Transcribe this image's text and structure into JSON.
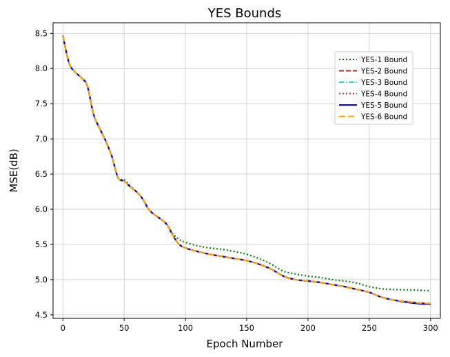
{
  "chart_data": {
    "type": "line",
    "title": "YES Bounds",
    "xlabel": "Epoch Number",
    "ylabel": "MSE(dB)",
    "xlim": [
      -8,
      308
    ],
    "ylim": [
      4.45,
      8.65
    ],
    "xticks": [
      0,
      50,
      100,
      150,
      200,
      250,
      300
    ],
    "yticks": [
      4.5,
      5.0,
      5.5,
      6.0,
      6.5,
      7.0,
      7.5,
      8.0,
      8.5
    ],
    "grid": true,
    "legend_position": "upper-right",
    "x": [
      0,
      5,
      10,
      15,
      20,
      25,
      30,
      35,
      40,
      45,
      50,
      55,
      60,
      65,
      70,
      75,
      80,
      85,
      90,
      95,
      100,
      110,
      120,
      130,
      140,
      150,
      160,
      170,
      180,
      190,
      200,
      210,
      220,
      230,
      240,
      250,
      260,
      270,
      280,
      290,
      300
    ],
    "series": [
      {
        "name": "YES-1 Bound",
        "color": "#008000",
        "dash": "dotted",
        "values": [
          8.47,
          8.08,
          7.95,
          7.87,
          7.75,
          7.35,
          7.15,
          6.97,
          6.75,
          6.45,
          6.42,
          6.33,
          6.25,
          6.15,
          6.0,
          5.92,
          5.86,
          5.78,
          5.65,
          5.57,
          5.53,
          5.48,
          5.45,
          5.43,
          5.4,
          5.36,
          5.3,
          5.22,
          5.12,
          5.08,
          5.05,
          5.03,
          5.0,
          4.98,
          4.95,
          4.9,
          4.87,
          4.86,
          4.855,
          4.85,
          4.84
        ]
      },
      {
        "name": "YES-2 Bound",
        "color": "#b22222",
        "dash": "dashed",
        "values": [
          8.47,
          8.08,
          7.95,
          7.87,
          7.75,
          7.35,
          7.15,
          6.97,
          6.75,
          6.45,
          6.4,
          6.32,
          6.25,
          6.15,
          6.0,
          5.92,
          5.86,
          5.78,
          5.62,
          5.5,
          5.45,
          5.4,
          5.36,
          5.33,
          5.3,
          5.27,
          5.22,
          5.15,
          5.05,
          5.0,
          4.98,
          4.96,
          4.93,
          4.9,
          4.86,
          4.82,
          4.75,
          4.71,
          4.69,
          4.67,
          4.66
        ]
      },
      {
        "name": "YES-3 Bound",
        "color": "#00e5ee",
        "dash": "dashdot",
        "values": [
          8.47,
          8.08,
          7.95,
          7.87,
          7.75,
          7.35,
          7.15,
          6.97,
          6.75,
          6.45,
          6.4,
          6.32,
          6.25,
          6.15,
          6.0,
          5.92,
          5.86,
          5.78,
          5.62,
          5.5,
          5.45,
          5.4,
          5.36,
          5.33,
          5.3,
          5.27,
          5.22,
          5.15,
          5.05,
          5.0,
          4.98,
          4.96,
          4.93,
          4.9,
          4.86,
          4.82,
          4.75,
          4.71,
          4.68,
          4.66,
          4.65
        ]
      },
      {
        "name": "YES-4 Bound",
        "color": "#ff1a1a",
        "dash": "dotted",
        "values": [
          8.47,
          8.08,
          7.95,
          7.87,
          7.75,
          7.35,
          7.15,
          6.97,
          6.75,
          6.45,
          6.4,
          6.32,
          6.25,
          6.15,
          6.0,
          5.92,
          5.86,
          5.78,
          5.62,
          5.5,
          5.45,
          5.4,
          5.36,
          5.33,
          5.3,
          5.27,
          5.22,
          5.15,
          5.05,
          5.0,
          4.98,
          4.96,
          4.93,
          4.9,
          4.86,
          4.82,
          4.75,
          4.71,
          4.68,
          4.66,
          4.65
        ]
      },
      {
        "name": "YES-5 Bound",
        "color": "#0000dd",
        "dash": "solid",
        "values": [
          8.47,
          8.08,
          7.95,
          7.87,
          7.75,
          7.35,
          7.15,
          6.97,
          6.75,
          6.45,
          6.4,
          6.32,
          6.25,
          6.15,
          6.0,
          5.92,
          5.86,
          5.78,
          5.62,
          5.5,
          5.45,
          5.4,
          5.36,
          5.33,
          5.3,
          5.27,
          5.22,
          5.15,
          5.05,
          5.0,
          4.98,
          4.96,
          4.93,
          4.9,
          4.86,
          4.82,
          4.75,
          4.71,
          4.68,
          4.66,
          4.65
        ]
      },
      {
        "name": "YES-6 Bound",
        "color": "#ffa500",
        "dash": "longdash",
        "values": [
          8.47,
          8.08,
          7.95,
          7.87,
          7.75,
          7.35,
          7.15,
          6.97,
          6.75,
          6.45,
          6.4,
          6.32,
          6.25,
          6.15,
          6.0,
          5.92,
          5.86,
          5.78,
          5.62,
          5.5,
          5.45,
          5.4,
          5.36,
          5.33,
          5.3,
          5.27,
          5.22,
          5.15,
          5.05,
          5.0,
          4.98,
          4.96,
          4.93,
          4.9,
          4.86,
          4.82,
          4.75,
          4.71,
          4.69,
          4.67,
          4.66
        ]
      }
    ]
  }
}
